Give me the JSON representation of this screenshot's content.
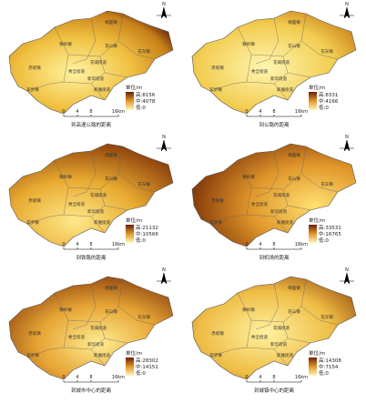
{
  "panels": [
    {
      "title": "到高速公路的距离",
      "legend": {
        "unit": "单位/m",
        "high": "高:8156",
        "mid": "中:4078",
        "low": "低:0"
      }
    },
    {
      "title": "到公路的距离",
      "legend": {
        "unit": "单位/m",
        "high": "高:8331",
        "mid": "中:4166",
        "low": "低:0"
      }
    },
    {
      "title": "到铁路的距离",
      "legend": {
        "unit": "单位/m",
        "high": "高:21132",
        "mid": "中:10566",
        "low": "低:0"
      }
    },
    {
      "title": "到机场的距离",
      "legend": {
        "unit": "单位/m",
        "high": "高:33531",
        "mid": "中:16765",
        "low": "低:0"
      }
    },
    {
      "title": "到城市中心的距离",
      "legend": {
        "unit": "单位/m",
        "high": "高:28302",
        "mid": "中:14151",
        "low": "低:0"
      }
    },
    {
      "title": "到城镇中心的距离",
      "legend": {
        "unit": "单位/m",
        "high": "高:14308",
        "mid": "中:7154",
        "low": "低:0"
      }
    }
  ],
  "towns": [
    "梯面镇",
    "狮岭镇",
    "花山镇",
    "花东镇",
    "赤坭镇",
    "秀全街道",
    "花城街道",
    "新华街道",
    "新雅街道",
    "炭步镇"
  ],
  "scale": [
    "0",
    "4",
    "8",
    "16km"
  ],
  "north": "N"
}
